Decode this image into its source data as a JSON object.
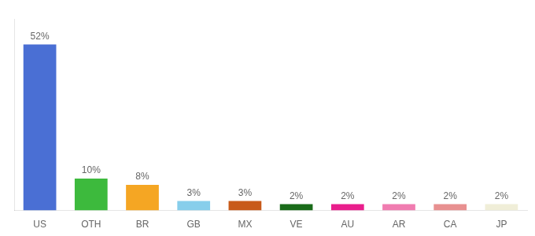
{
  "chart_data": {
    "type": "bar",
    "categories": [
      "US",
      "OTH",
      "BR",
      "GB",
      "MX",
      "VE",
      "AU",
      "AR",
      "CA",
      "JP"
    ],
    "values": [
      52,
      10,
      8,
      3,
      3,
      2,
      2,
      2,
      2,
      2
    ],
    "value_labels": [
      "52%",
      "10%",
      "8%",
      "3%",
      "3%",
      "2%",
      "2%",
      "2%",
      "2%",
      "2%"
    ],
    "data_labels": true,
    "colors": [
      "#4a6fd4",
      "#3dba3d",
      "#f5a623",
      "#87ceeb",
      "#c85a1a",
      "#1a6b1a",
      "#e91e8c",
      "#f07cb0",
      "#e89090",
      "#f0eed8"
    ],
    "ylim": [
      0,
      60
    ],
    "tick_labels": "x",
    "grid": false
  }
}
